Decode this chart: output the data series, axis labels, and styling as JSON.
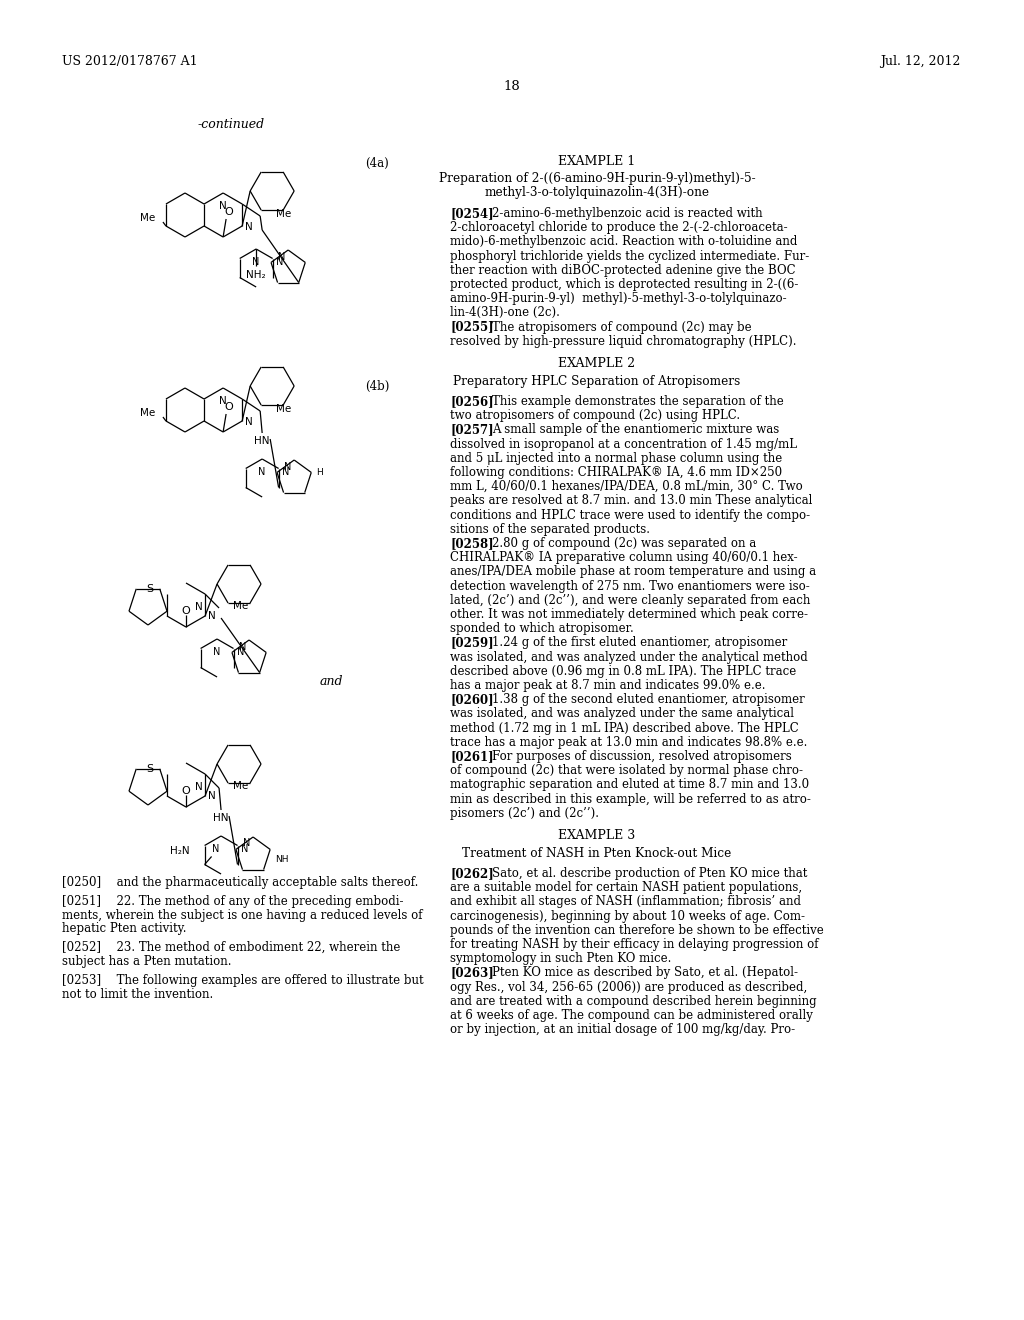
{
  "bg_color": "#ffffff",
  "page_number": "18",
  "header_left": "US 2012/0178767 A1",
  "header_right": "Jul. 12, 2012",
  "continued_label": "-continued",
  "label_4a": "(4a)",
  "label_4b": "(4b)",
  "example1_title": "EXAMPLE 1",
  "example1_subtitle_1": "Preparation of 2-((6-amino-9H-purin-9-yl)methyl)-5-",
  "example1_subtitle_2": "methyl-3-o-tolylquinazolin-4(3H)-one",
  "para_0254_label": "[0254]",
  "para_0254_text": "2-amino-6-methylbenzoic acid is reacted with 2-chloroacetyl chloride to produce the 2-(-2-chloroaceta-mido)-6-methylbenzoic acid. Reaction with o-toluidine and phosphoryl trichloride yields the cyclized intermediate. Fur-ther reaction with diBOC-protected adenine give the BOC protected product, which is deprotected resulting in 2-((6-amino-9H-purin-9-yl)  methyl)-5-methyl-3-o-tolylquinazo-lin-4(3H)-one (2c).",
  "para_0255_label": "[0255]",
  "para_0255_text": "The atropisomers of compound (2c) may be resolved by high-pressure liquid chromatography (HPLC).",
  "example2_title": "EXAMPLE 2",
  "example2_subtitle": "Preparatory HPLC Separation of Atropisomers",
  "para_0256_label": "[0256]",
  "para_0256_text": "This example demonstrates the separation of the two atropisomers of compound (2c) using HPLC.",
  "para_0257_label": "[0257]",
  "para_0257_text": "A small sample of the enantiomeric mixture was dissolved in isopropanol at a concentration of 1.45 mg/mL and 5 μL injected into a normal phase column using the following conditions: CHIRALPAK® IA, 4.6 mm ID×250 mm L, 40/60/0.1 hexanes/IPA/DEA, 0.8 mL/min, 30° C. Two peaks are resolved at 8.7 min. and 13.0 min These analytical conditions and HPLC trace were used to identify the compo-sitions of the separated products.",
  "para_0258_label": "[0258]",
  "para_0258_text": "2.80 g of compound (2c) was separated on a CHIRALPAK® IA preparative column using 40/60/0.1 hex-anes/IPA/DEA mobile phase at room temperature and using a detection wavelength of 275 nm. Two enantiomers were iso-lated, (2c’) and (2c’’), and were cleanly separated from each other. It was not immediately determined which peak corre-sponded to which atropisomer.",
  "para_0259_label": "[0259]",
  "para_0259_text": "1.24 g of the first eluted enantiomer, atropisomer was isolated, and was analyzed under the analytical method described above (0.96 mg in 0.8 mL IPA). The HPLC trace has a major peak at 8.7 min and indicates 99.0% e.e.",
  "para_0260_label": "[0260]",
  "para_0260_text": "1.38 g of the second eluted enantiomer, atropisomer was isolated, and was analyzed under the same analytical method (1.72 mg in 1 mL IPA) described above. The HPLC trace has a major peak at 13.0 min and indicates 98.8% e.e.",
  "para_0261_label": "[0261]",
  "para_0261_text": "For purposes of discussion, resolved atropisomers of compound (2c) that were isolated by normal phase chro-matographic separation and eluted at time 8.7 min and 13.0 min as described in this example, will be referred to as atro-pisomers (2c’) and (2c’’).",
  "example3_title": "EXAMPLE 3",
  "example3_subtitle": "Treatment of NASH in Pten Knock-out Mice",
  "para_0262_label": "[0262]",
  "para_0262_text": "Sato, et al. describe production of Pten KO mice that are a suitable model for certain NASH patient populations, and exhibit all stages of NASH (inflammation; fibrosis’ and carcinogenesis), beginning by about 10 weeks of age. Com-pounds of the invention can therefore be shown to be effective for treating NASH by their efficacy in delaying progression of symptomology in such Pten KO mice.",
  "para_0263_label": "[0263]",
  "para_0263_text": "Pten KO mice as described by Sato, et al. (Hepatol-ogy Res., vol 34, 256-65 (2006)) are produced as described, and are treated with a compound described herein beginning at 6 weeks of age. The compound can be administered orally or by injection, at an initial dosage of 100 mg/kg/day. Pro-",
  "para_0250": "[0250]  and the pharmaceutically acceptable salts thereof.",
  "para_0251": "[0251]  22. The method of any of the preceding embodi-\nments, wherein the subject is one having a reduced levels of\nhepatic Pten activity.",
  "para_0252": "[0252]  23. The method of embodiment 22, wherein the\nsubject has a Pten mutation.",
  "para_0253": "[0253]  The following examples are offered to illustrate but\nnot to limit the invention."
}
